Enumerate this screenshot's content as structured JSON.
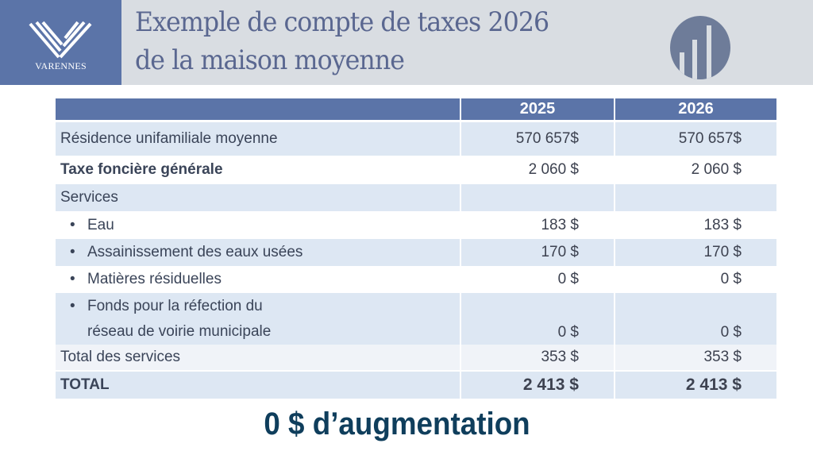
{
  "header": {
    "logo_text": "VARENNES",
    "title_line1": "Exemple de compte de taxes 2026",
    "title_line2": "de la maison moyenne",
    "icon": "bar-chart-icon"
  },
  "table": {
    "columns": [
      "",
      "2025",
      "2026"
    ],
    "rows": [
      {
        "label": "Résidence unifamiliale moyenne",
        "v2025": "570 657$",
        "v2026": "570 657$"
      },
      {
        "label": "Taxe foncière générale",
        "v2025": "2 060 $",
        "v2026": "2 060 $"
      },
      {
        "label": "Services",
        "v2025": "",
        "v2026": ""
      },
      {
        "label": "Eau",
        "v2025": "183 $",
        "v2026": "183 $"
      },
      {
        "label": "Assainissement des eaux usées",
        "v2025": "170 $",
        "v2026": "170 $"
      },
      {
        "label": "Matières résiduelles",
        "v2025": "0 $",
        "v2026": "0 $"
      },
      {
        "label": "Fonds pour la réfection du",
        "label2": "réseau de voirie municipale",
        "v2025": "0 $",
        "v2026": "0 $"
      },
      {
        "label": "Total des services",
        "v2025": "353 $",
        "v2026": "353 $"
      },
      {
        "label": "TOTAL",
        "v2025": "2 413 $",
        "v2026": "2 413 $"
      }
    ],
    "bullet": "•"
  },
  "footer": {
    "headline": "0 $ d’augmentation"
  },
  "colors": {
    "header_blue": "#5b74a8",
    "row_light": "#dde7f3",
    "headline": "#0f3e5c"
  }
}
